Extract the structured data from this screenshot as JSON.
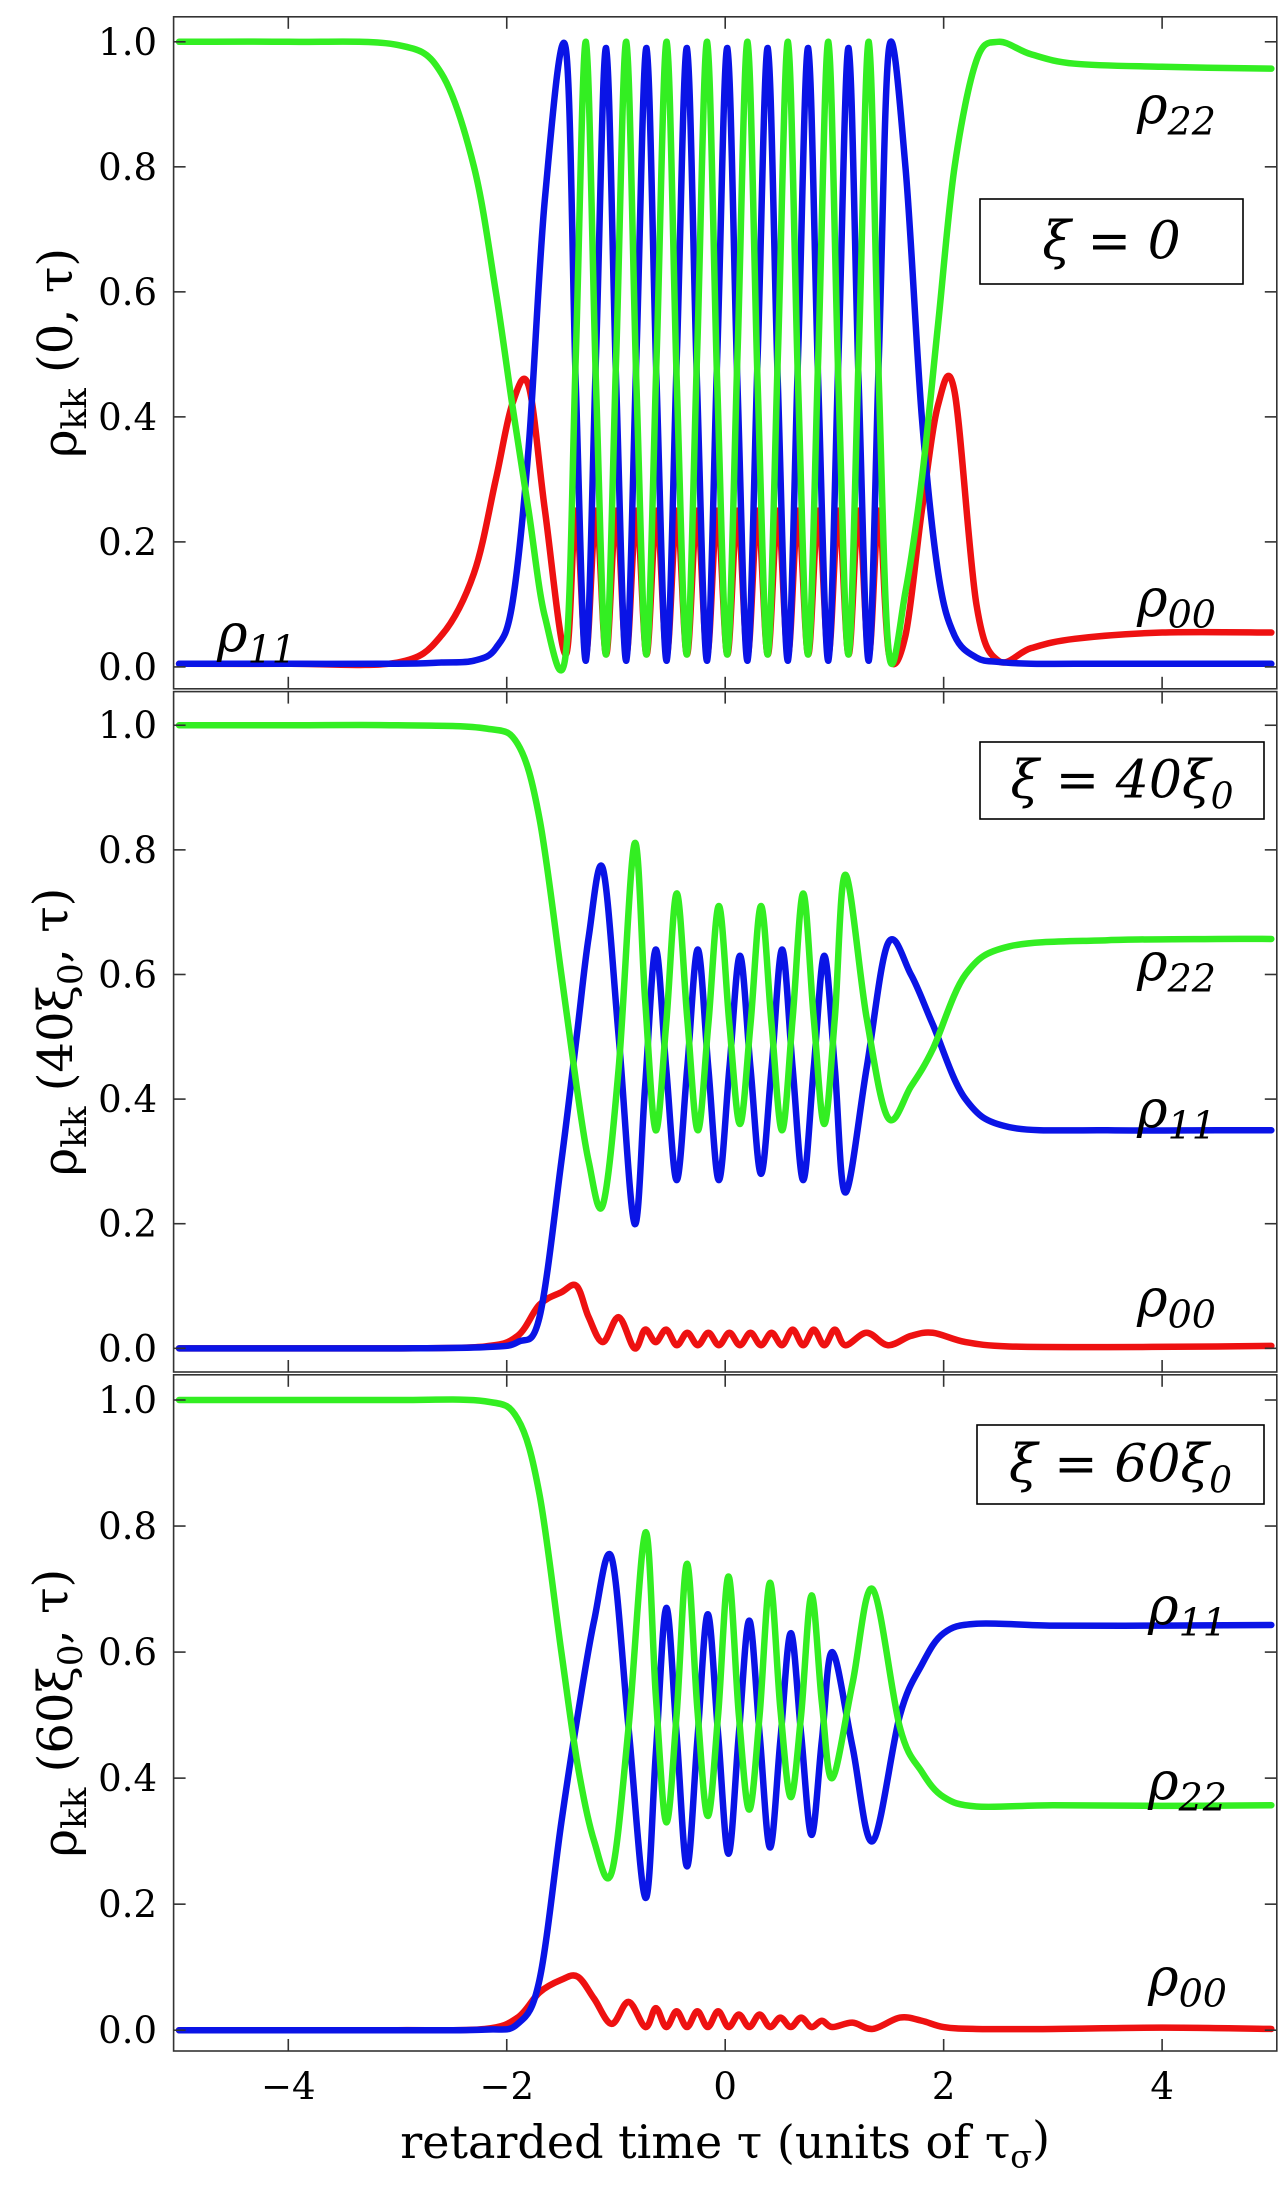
{
  "chart_data": [
    {
      "type": "line",
      "ylabel": [
        {
          "text": "ρ"
        },
        {
          "text": "kk",
          "subscript": true
        },
        {
          "text": " (0, τ)"
        }
      ],
      "box_label": [
        {
          "text": "ξ = 0"
        }
      ],
      "annotations": [
        [
          {
            "text": "ρ"
          },
          {
            "text": "22",
            "subscript": true
          }
        ],
        [
          {
            "text": "ρ"
          },
          {
            "text": "00",
            "subscript": true
          }
        ],
        [
          {
            "text": "ρ"
          },
          {
            "text": "11",
            "subscript": true
          }
        ]
      ],
      "xlim": [
        -5.05,
        5.05
      ],
      "ylim": [
        -0.035,
        1.04
      ],
      "xticks": [
        -4,
        -2,
        0,
        2,
        4
      ],
      "yticks": [
        {
          "value": 0,
          "label": "0.0"
        },
        0.2,
        0.4,
        0.6,
        0.8,
        {
          "value": 1,
          "label": "1.0"
        }
      ],
      "x": [
        -5,
        -4,
        -3,
        -2.6,
        -2.3,
        -2.1,
        -1.95,
        -1.8,
        -1.65,
        -1.46,
        -1.3675,
        -1.275,
        -1.1825,
        -1.09,
        -0.9975,
        -0.905,
        -0.8125,
        -0.72,
        -0.6275,
        -0.535,
        -0.4425,
        -0.35,
        -0.2575,
        -0.165,
        -0.0725,
        0.02,
        0.1125,
        0.205,
        0.2975,
        0.39,
        0.4825,
        0.575,
        0.6675,
        0.76,
        0.8525,
        0.945,
        1.0375,
        1.13,
        1.2225,
        1.315,
        1.4075,
        1.5,
        1.65,
        1.8,
        1.95,
        2.1,
        2.3,
        2.5,
        2.8,
        3.2,
        4,
        5
      ],
      "series": [
        {
          "color": "#ee1111",
          "values": [
            0.005,
            0.005,
            0.007,
            0.05,
            0.15,
            0.3,
            0.42,
            0.45,
            0.25,
            0.02,
            0.25,
            0.02,
            0.25,
            0.02,
            0.25,
            0.02,
            0.25,
            0.02,
            0.25,
            0.02,
            0.25,
            0.02,
            0.25,
            0.02,
            0.25,
            0.02,
            0.25,
            0.02,
            0.25,
            0.02,
            0.25,
            0.02,
            0.25,
            0.02,
            0.25,
            0.02,
            0.25,
            0.02,
            0.25,
            0.02,
            0.25,
            0.02,
            0.05,
            0.25,
            0.42,
            0.44,
            0.1,
            0.01,
            0.03,
            0.045,
            0.055,
            0.055
          ]
        },
        {
          "color": "#0a14e6",
          "values": [
            0.005,
            0.005,
            0.005,
            0.007,
            0.01,
            0.03,
            0.1,
            0.35,
            0.75,
            0.99,
            0.45,
            0.01,
            0.5,
            0.99,
            0.45,
            0.01,
            0.5,
            0.99,
            0.45,
            0.01,
            0.5,
            0.99,
            0.45,
            0.01,
            0.5,
            0.99,
            0.45,
            0.01,
            0.5,
            0.99,
            0.45,
            0.01,
            0.5,
            0.99,
            0.45,
            0.01,
            0.5,
            0.99,
            0.45,
            0.01,
            0.5,
            0.99,
            0.8,
            0.4,
            0.15,
            0.05,
            0.015,
            0.008,
            0.005,
            0.005,
            0.005,
            0.005
          ]
        },
        {
          "color": "#33ee22",
          "values": [
            1,
            1,
            0.995,
            0.95,
            0.8,
            0.6,
            0.42,
            0.25,
            0.08,
            0.02,
            0.5,
            1,
            0.45,
            0.02,
            0.5,
            1,
            0.45,
            0.02,
            0.5,
            1,
            0.45,
            0.02,
            0.5,
            1,
            0.45,
            0.02,
            0.5,
            1,
            0.45,
            0.02,
            0.5,
            1,
            0.45,
            0.02,
            0.5,
            1,
            0.45,
            0.02,
            0.5,
            1,
            0.45,
            0.02,
            0.12,
            0.3,
            0.55,
            0.8,
            0.97,
            1,
            0.98,
            0.965,
            0.96,
            0.957
          ]
        }
      ]
    },
    {
      "type": "line",
      "ylabel": [
        {
          "text": "ρ"
        },
        {
          "text": "kk",
          "subscript": true
        },
        {
          "text": " (40ξ"
        },
        {
          "text": "0",
          "subscript": true
        },
        {
          "text": ", τ)"
        }
      ],
      "box_label": [
        {
          "text": "ξ = 40ξ"
        },
        {
          "text": "0",
          "subscript": true
        }
      ],
      "annotations": [
        [
          {
            "text": "ρ"
          },
          {
            "text": "22",
            "subscript": true
          }
        ],
        [
          {
            "text": "ρ"
          },
          {
            "text": "11",
            "subscript": true
          }
        ],
        [
          {
            "text": "ρ"
          },
          {
            "text": "00",
            "subscript": true
          }
        ]
      ],
      "xlim": [
        -5.05,
        5.05
      ],
      "ylim": [
        -0.038,
        1.054
      ],
      "xticks": [
        -4,
        -2,
        0,
        2,
        4
      ],
      "yticks": [
        {
          "value": 0,
          "label": "0.0"
        },
        0.2,
        0.4,
        0.6,
        0.8,
        {
          "value": 1,
          "label": "1.0"
        }
      ],
      "x": [
        -5,
        -4,
        -3,
        -2.2,
        -1.9,
        -1.7,
        -1.5,
        -1.36,
        -1.25,
        -1.12,
        -0.975,
        -0.83,
        -0.7335,
        -0.637,
        -0.5405,
        -0.444,
        -0.3475,
        -0.251,
        -0.1545,
        -0.058,
        0.0385,
        0.135,
        0.2315,
        0.328,
        0.4245,
        0.521,
        0.6175,
        0.714,
        0.8105,
        0.907,
        1.0035,
        1.1,
        1.295,
        1.49,
        1.7,
        1.9,
        2.2,
        2.6,
        3.5,
        4.5,
        5
      ],
      "series": [
        {
          "color": "#ee1111",
          "values": [
            0,
            0,
            0,
            0.003,
            0.02,
            0.07,
            0.09,
            0.1,
            0.05,
            0.01,
            0.05,
            0,
            0.03,
            0.01,
            0.03,
            0.005,
            0.025,
            0.005,
            0.025,
            0.005,
            0.025,
            0.005,
            0.025,
            0.005,
            0.025,
            0.005,
            0.03,
            0.005,
            0.03,
            0.005,
            0.03,
            0.005,
            0.025,
            0.005,
            0.02,
            0.025,
            0.01,
            0.003,
            0.002,
            0.003,
            0.004
          ]
        },
        {
          "color": "#0a14e6",
          "values": [
            0,
            0,
            0,
            0.002,
            0.01,
            0.05,
            0.3,
            0.5,
            0.66,
            0.77,
            0.5,
            0.2,
            0.42,
            0.64,
            0.45,
            0.27,
            0.45,
            0.64,
            0.45,
            0.27,
            0.45,
            0.63,
            0.45,
            0.28,
            0.45,
            0.64,
            0.45,
            0.27,
            0.45,
            0.63,
            0.45,
            0.25,
            0.45,
            0.65,
            0.6,
            0.52,
            0.4,
            0.355,
            0.35,
            0.35,
            0.35
          ]
        },
        {
          "color": "#33ee22",
          "values": [
            1,
            1,
            1,
            0.995,
            0.97,
            0.85,
            0.6,
            0.42,
            0.3,
            0.23,
            0.45,
            0.81,
            0.56,
            0.35,
            0.52,
            0.73,
            0.53,
            0.35,
            0.52,
            0.71,
            0.52,
            0.36,
            0.52,
            0.71,
            0.52,
            0.35,
            0.53,
            0.73,
            0.53,
            0.36,
            0.53,
            0.76,
            0.53,
            0.37,
            0.42,
            0.48,
            0.6,
            0.645,
            0.655,
            0.657,
            0.657
          ]
        }
      ]
    },
    {
      "type": "line",
      "ylabel": [
        {
          "text": "ρ"
        },
        {
          "text": "kk",
          "subscript": true
        },
        {
          "text": " (60ξ"
        },
        {
          "text": "0",
          "subscript": true
        },
        {
          "text": ", τ)"
        }
      ],
      "box_label": [
        {
          "text": "ξ = 60ξ"
        },
        {
          "text": "0",
          "subscript": true
        }
      ],
      "annotations": [
        [
          {
            "text": "ρ"
          },
          {
            "text": "11",
            "subscript": true
          }
        ],
        [
          {
            "text": "ρ"
          },
          {
            "text": "22",
            "subscript": true
          }
        ],
        [
          {
            "text": "ρ"
          },
          {
            "text": "00",
            "subscript": true
          }
        ]
      ],
      "xlabel": [
        {
          "text": "retarded time τ (units of τ"
        },
        {
          "text": "σ",
          "subscript": true
        },
        {
          "text": ")"
        }
      ],
      "xlim": [
        -5.05,
        5.05
      ],
      "ylim": [
        -0.033,
        1.04
      ],
      "xticks": [
        {
          "value": -4,
          "label": "−4"
        },
        {
          "value": -2,
          "label": "−2"
        },
        0,
        2,
        4
      ],
      "yticks": [
        {
          "value": 0,
          "label": "0.0"
        },
        0.2,
        0.4,
        0.6,
        0.8,
        {
          "value": 1,
          "label": "1.0"
        }
      ],
      "x": [
        -5,
        -4,
        -3,
        -2.2,
        -1.9,
        -1.7,
        -1.5,
        -1.35,
        -1.2,
        -1.04,
        -0.885,
        -0.73,
        -0.635,
        -0.54,
        -0.445,
        -0.35,
        -0.255,
        -0.16,
        -0.065,
        0.03,
        0.125,
        0.22,
        0.315,
        0.41,
        0.505,
        0.6,
        0.695,
        0.79,
        0.885,
        0.98,
        1.165,
        1.35,
        1.6,
        1.8,
        2.0,
        2.3,
        3,
        4,
        5
      ],
      "series": [
        {
          "color": "#ee1111",
          "values": [
            0,
            0,
            0,
            0.002,
            0.02,
            0.06,
            0.08,
            0.085,
            0.05,
            0.01,
            0.045,
            0.005,
            0.035,
            0.005,
            0.03,
            0.005,
            0.03,
            0.005,
            0.03,
            0.005,
            0.025,
            0.005,
            0.025,
            0.005,
            0.02,
            0.005,
            0.02,
            0.005,
            0.015,
            0.005,
            0.012,
            0.002,
            0.02,
            0.015,
            0.005,
            0.002,
            0.002,
            0.004,
            0.002
          ]
        },
        {
          "color": "#0a14e6",
          "values": [
            0,
            0,
            0,
            0.001,
            0.01,
            0.08,
            0.33,
            0.5,
            0.65,
            0.75,
            0.48,
            0.21,
            0.44,
            0.67,
            0.47,
            0.26,
            0.46,
            0.66,
            0.47,
            0.28,
            0.47,
            0.65,
            0.47,
            0.29,
            0.46,
            0.63,
            0.47,
            0.31,
            0.46,
            0.6,
            0.45,
            0.3,
            0.5,
            0.58,
            0.63,
            0.645,
            0.642,
            0.642,
            0.643
          ]
        },
        {
          "color": "#33ee22",
          "values": [
            1,
            1,
            1,
            0.998,
            0.97,
            0.85,
            0.6,
            0.42,
            0.3,
            0.25,
            0.48,
            0.79,
            0.53,
            0.33,
            0.5,
            0.74,
            0.51,
            0.34,
            0.5,
            0.72,
            0.5,
            0.35,
            0.5,
            0.71,
            0.51,
            0.37,
            0.5,
            0.69,
            0.52,
            0.4,
            0.55,
            0.7,
            0.48,
            0.41,
            0.37,
            0.355,
            0.357,
            0.356,
            0.357
          ]
        }
      ]
    }
  ]
}
